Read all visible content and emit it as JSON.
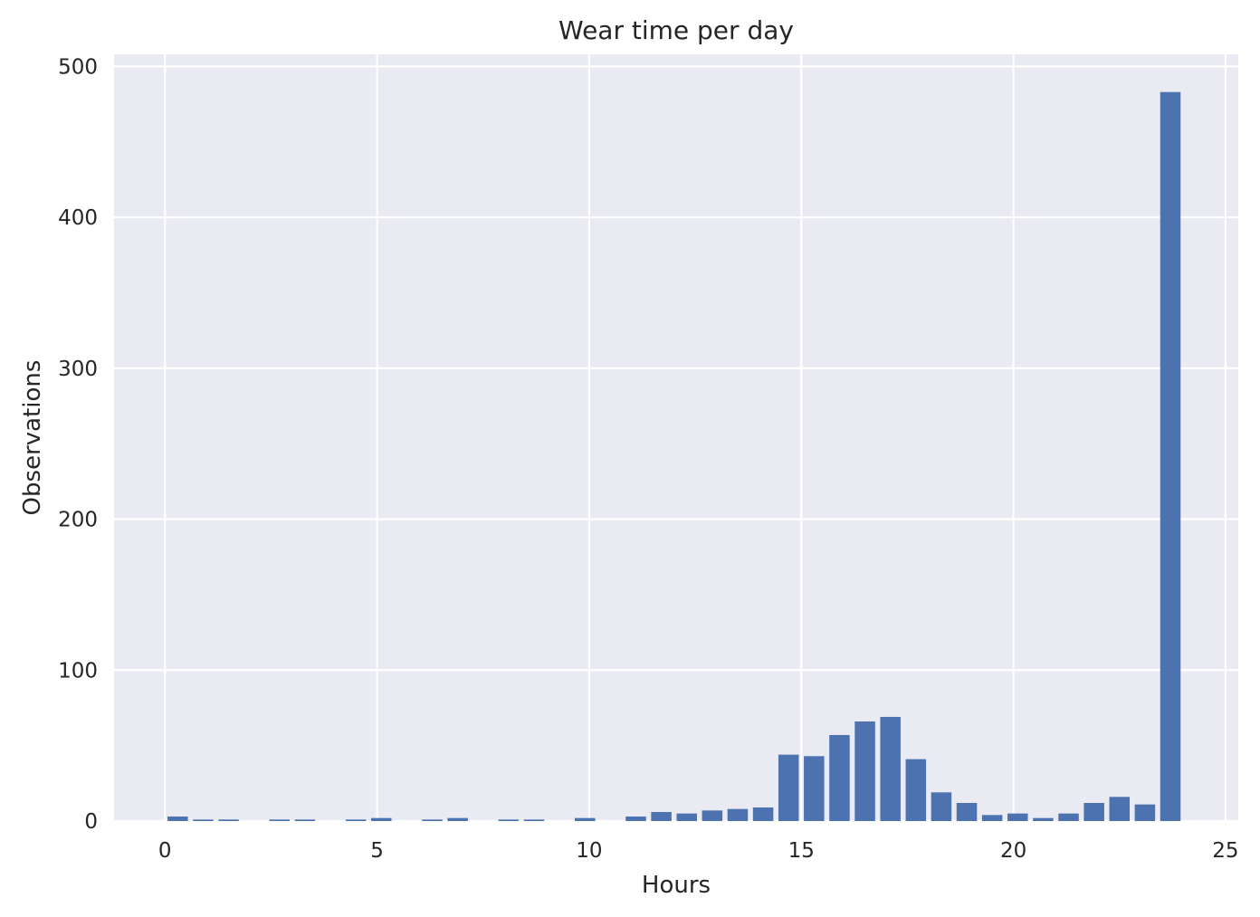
{
  "chart_data": {
    "type": "bar",
    "title": "Wear time per day",
    "xlabel": "Hours",
    "ylabel": "Observations",
    "xlim": [
      -1.2,
      25.3
    ],
    "ylim": [
      0,
      508
    ],
    "xticks": [
      0,
      5,
      10,
      15,
      20,
      25
    ],
    "yticks": [
      0,
      100,
      200,
      300,
      400,
      500
    ],
    "grid": true,
    "colors": {
      "plot_background": "#eaeaf2",
      "grid": "#ffffff",
      "bar": "#4c72b0",
      "text": "#262626"
    },
    "bar_width": 0.48,
    "x": [
      0.3,
      0.9,
      1.5,
      2.1,
      2.7,
      3.3,
      3.9,
      4.5,
      5.1,
      5.7,
      6.3,
      6.9,
      7.5,
      8.1,
      8.7,
      9.3,
      9.9,
      10.5,
      11.1,
      11.7,
      12.3,
      12.9,
      13.5,
      14.1,
      14.7,
      15.3,
      15.9,
      16.5,
      17.1,
      17.7,
      18.3,
      18.9,
      19.5,
      20.1,
      20.7,
      21.3,
      21.9,
      22.5,
      23.1,
      23.7
    ],
    "values": [
      3,
      1,
      1,
      0,
      1,
      1,
      0,
      1,
      2,
      0,
      1,
      2,
      0,
      1,
      1,
      0,
      2,
      0,
      3,
      6,
      5,
      7,
      8,
      9,
      44,
      43,
      57,
      66,
      69,
      41,
      19,
      12,
      4,
      5,
      2,
      5,
      12,
      16,
      11,
      483
    ]
  }
}
